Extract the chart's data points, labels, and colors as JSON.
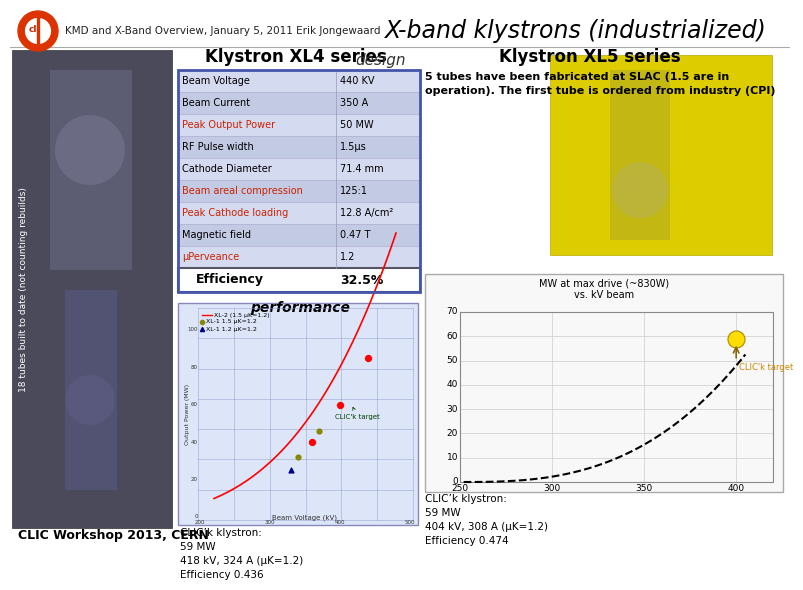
{
  "title": "X-band klystrons (industrialized)",
  "header_text": "KMD and X-Band Overview, January 5, 2011 Erik Jongewaard",
  "background_color": "#ffffff",
  "left_section_title": "Klystron XL4 series",
  "left_section_subtitle": "design",
  "right_section_title": "Klystron XL5 series",
  "table_rows": [
    {
      "label": "Beam Voltage",
      "value": "440 KV",
      "highlight": false
    },
    {
      "label": "Beam Current",
      "value": "350 A",
      "highlight": false
    },
    {
      "label": "Peak Output Power",
      "value": "50 MW",
      "highlight": true
    },
    {
      "label": "RF Pulse width",
      "value": "1.5μs",
      "highlight": false
    },
    {
      "label": "Cathode Diameter",
      "value": "71.4 mm",
      "highlight": false
    },
    {
      "label": "Beam areal compression",
      "value": "125:1",
      "highlight": true
    },
    {
      "label": "Peak Cathode loading",
      "value": "12.8 A/cm²",
      "highlight": true
    },
    {
      "label": "Magnetic field",
      "value": "0.47 T",
      "highlight": false
    },
    {
      "label": "μPerveance",
      "value": "1.2",
      "highlight": true
    }
  ],
  "efficiency_label": "Efficiency",
  "efficiency_value": "32.5%",
  "performance_label": "performance",
  "xl5_description": "5 tubes have been fabricated at SLAC (1.5 are in\noperation). The first tube is ordered from industry (CPI)",
  "left_bottom_text": "CLIC’k klystron:\n59 MW\n418 kV, 324 A (μK=1.2)\nEfficiency 0.436",
  "right_bottom_text": "CLIC’k klystron:\n59 MW\n404 kV, 308 A (μK=1.2)\nEfficiency 0.474",
  "footer_text": "CLIC Workshop 2013, CERN",
  "vertical_label": "18 tubes built to date (not counting rebuilds)",
  "table_highlight_color": "#cc2200",
  "logo_outer": "#dd3300",
  "logo_inner": "#ffffff"
}
